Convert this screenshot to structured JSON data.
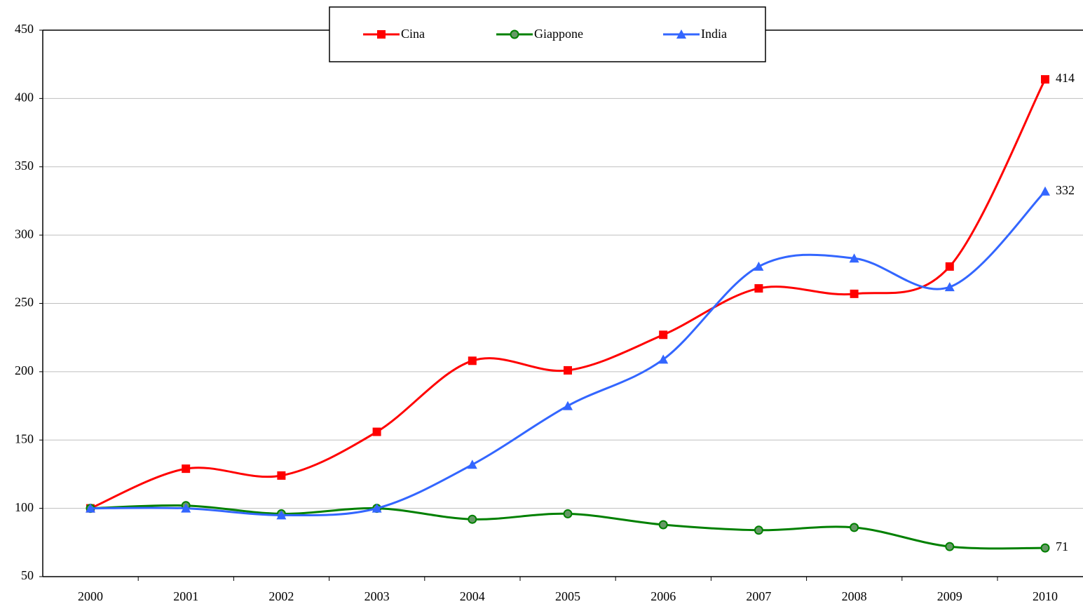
{
  "chart_data": {
    "type": "line",
    "categories": [
      "2000",
      "2001",
      "2002",
      "2003",
      "2004",
      "2005",
      "2006",
      "2007",
      "2008",
      "2009",
      "2010"
    ],
    "series": [
      {
        "name": "Cina",
        "color": "#ff0000",
        "marker": "square",
        "values": [
          100,
          129,
          124,
          156,
          208,
          201,
          227,
          261,
          257,
          277,
          414
        ]
      },
      {
        "name": "Giappone",
        "color": "#008000",
        "marker": "circle",
        "values": [
          100,
          102,
          96,
          100,
          92,
          96,
          88,
          84,
          86,
          72,
          71
        ]
      },
      {
        "name": "India",
        "color": "#3366ff",
        "marker": "triangle",
        "values": [
          100,
          100,
          95,
          100,
          132,
          175,
          209,
          277,
          283,
          262,
          332
        ]
      }
    ],
    "end_labels": true,
    "ylim": [
      50,
      450
    ],
    "yticks": [
      50,
      100,
      150,
      200,
      250,
      300,
      350,
      400,
      450
    ],
    "grid": true,
    "smooth": true,
    "legend": "top"
  }
}
